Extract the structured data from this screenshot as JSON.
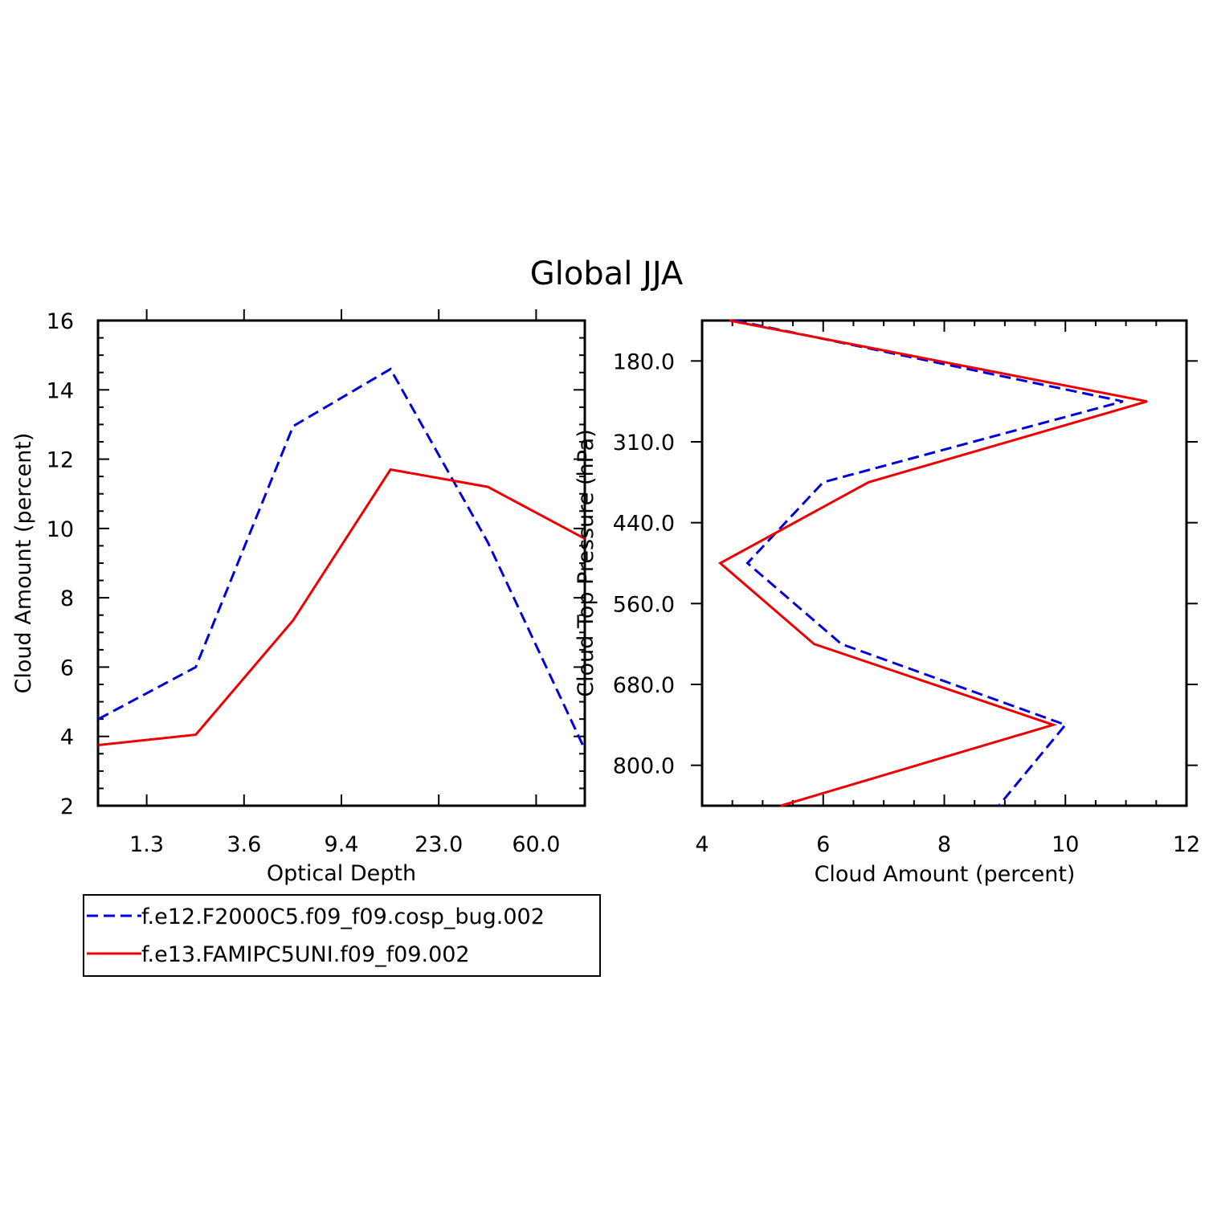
{
  "title": "Global JJA",
  "legend": {
    "placement": "bottom-left",
    "entries": [
      {
        "label": "f.e12.F2000C5.f09_f09.cosp_bug.002",
        "color": "#0000dd",
        "dash": true
      },
      {
        "label": "f.e13.FAMIPC5UNI.f09_f09.002",
        "color": "#ee0000",
        "dash": false
      }
    ]
  },
  "chart_data": [
    {
      "type": "line",
      "xlabel": "Optical Depth",
      "ylabel": "Cloud Amount (percent)",
      "x_tick_labels": [
        "1.3",
        "3.6",
        "9.4",
        "23.0",
        "60.0"
      ],
      "y_ticks": [
        2,
        4,
        6,
        8,
        10,
        12,
        14,
        16
      ],
      "ylim": [
        2,
        16
      ],
      "series": [
        {
          "name": "f.e12.F2000C5.f09_f09.cosp_bug.002",
          "color": "#0000dd",
          "dash": true,
          "values": [
            4.5,
            6.0,
            12.95,
            14.6,
            9.6,
            3.6
          ]
        },
        {
          "name": "f.e13.FAMIPC5UNI.f09_f09.002",
          "color": "#ee0000",
          "dash": false,
          "values": [
            3.75,
            4.05,
            7.35,
            11.7,
            11.2,
            9.7
          ]
        }
      ]
    },
    {
      "type": "line",
      "xlabel": "Cloud Amount (percent)",
      "ylabel": "Cloud Top Pressure (hPa)",
      "x_ticks": [
        4,
        6,
        8,
        10,
        12
      ],
      "xlim": [
        4,
        12
      ],
      "y_tick_labels": [
        "180.0",
        "310.0",
        "440.0",
        "560.0",
        "680.0",
        "800.0"
      ],
      "series": [
        {
          "name": "f.e12.F2000C5.f09_f09.cosp_bug.002",
          "color": "#0000dd",
          "dash": true,
          "values": [
            4.55,
            10.95,
            6.0,
            4.75,
            6.3,
            10.0,
            8.9
          ]
        },
        {
          "name": "f.e13.FAMIPC5UNI.f09_f09.002",
          "color": "#ee0000",
          "dash": false,
          "values": [
            4.45,
            11.35,
            6.75,
            4.3,
            5.85,
            9.8,
            5.3
          ]
        }
      ]
    }
  ]
}
